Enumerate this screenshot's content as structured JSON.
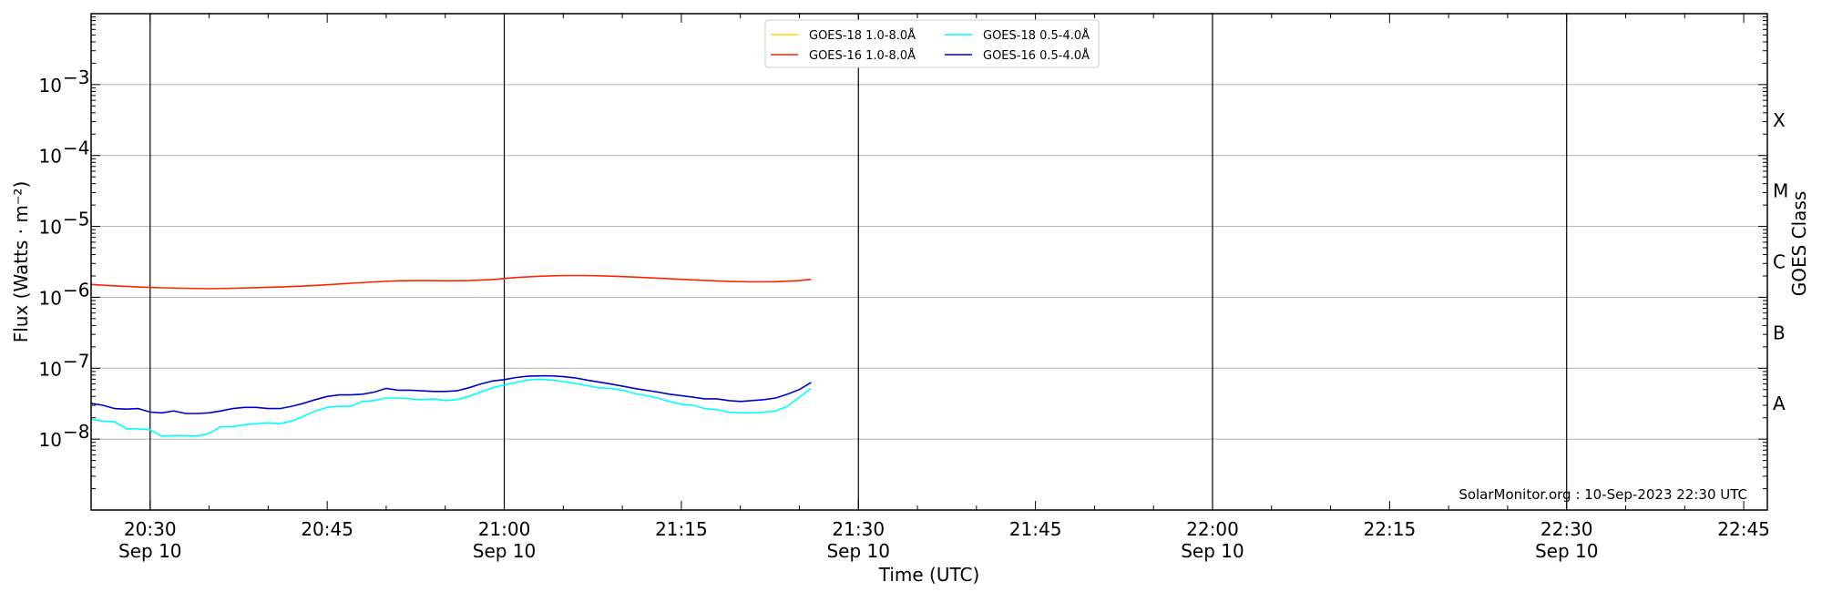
{
  "chart_data": {
    "type": "line",
    "title": "",
    "xlabel": "Time (UTC)",
    "ylabel": "Flux (Watts · m⁻²)",
    "y2label": "GOES Class",
    "y_scale": "log",
    "ylim": [
      1e-09,
      0.01
    ],
    "xlim": [
      "2023-09-10 20:25",
      "2023-09-10 22:47"
    ],
    "grid": "horizontal",
    "legend_position": "top-center",
    "x_ticks": [
      {
        "t": "2023-09-10 20:30",
        "label": "20:30",
        "sub": "Sep 10"
      },
      {
        "t": "2023-09-10 20:45",
        "label": "20:45",
        "sub": ""
      },
      {
        "t": "2023-09-10 21:00",
        "label": "21:00",
        "sub": "Sep 10"
      },
      {
        "t": "2023-09-10 21:15",
        "label": "21:15",
        "sub": ""
      },
      {
        "t": "2023-09-10 21:30",
        "label": "21:30",
        "sub": "Sep 10"
      },
      {
        "t": "2023-09-10 21:45",
        "label": "21:45",
        "sub": ""
      },
      {
        "t": "2023-09-10 22:00",
        "label": "22:00",
        "sub": "Sep 10"
      },
      {
        "t": "2023-09-10 22:15",
        "label": "22:15",
        "sub": ""
      },
      {
        "t": "2023-09-10 22:30",
        "label": "22:30",
        "sub": "Sep 10"
      },
      {
        "t": "2023-09-10 22:45",
        "label": "22:45",
        "sub": ""
      }
    ],
    "day_lines": [
      "2023-09-10 20:30",
      "2023-09-10 21:00",
      "2023-09-10 21:30",
      "2023-09-10 22:00",
      "2023-09-10 22:30"
    ],
    "y_ticks": [
      {
        "exp": -8,
        "label": "10",
        "sup": "−8"
      },
      {
        "exp": -7,
        "label": "10",
        "sup": "−7"
      },
      {
        "exp": -6,
        "label": "10",
        "sup": "−6"
      },
      {
        "exp": -5,
        "label": "10",
        "sup": "−5"
      },
      {
        "exp": -4,
        "label": "10",
        "sup": "−4"
      },
      {
        "exp": -3,
        "label": "10",
        "sup": "−3"
      }
    ],
    "goes_classes": [
      {
        "label": "A",
        "exp": -7.5
      },
      {
        "label": "B",
        "exp": -6.5
      },
      {
        "label": "C",
        "exp": -5.5
      },
      {
        "label": "M",
        "exp": -4.5
      },
      {
        "label": "X",
        "exp": -3.5
      }
    ],
    "annotation": "SolarMonitor.org : 10-Sep-2023 22:30 UTC",
    "series": [
      {
        "name": "GOES-18 1.0-8.0Å",
        "color": "#ffd700",
        "x": [],
        "y": []
      },
      {
        "name": "GOES-16 1.0-8.0Å",
        "color": "#ff2200",
        "x": [
          "2023-09-10 20:25",
          "2023-09-10 20:27",
          "2023-09-10 20:29",
          "2023-09-10 20:31",
          "2023-09-10 20:33",
          "2023-09-10 20:35",
          "2023-09-10 20:37",
          "2023-09-10 20:39",
          "2023-09-10 20:41",
          "2023-09-10 20:43",
          "2023-09-10 20:45",
          "2023-09-10 20:47",
          "2023-09-10 20:49",
          "2023-09-10 20:51",
          "2023-09-10 20:53",
          "2023-09-10 20:55",
          "2023-09-10 20:57",
          "2023-09-10 20:59",
          "2023-09-10 21:01",
          "2023-09-10 21:03",
          "2023-09-10 21:05",
          "2023-09-10 21:07",
          "2023-09-10 21:09",
          "2023-09-10 21:11",
          "2023-09-10 21:13",
          "2023-09-10 21:15",
          "2023-09-10 21:17",
          "2023-09-10 21:19",
          "2023-09-10 21:21",
          "2023-09-10 21:23",
          "2023-09-10 21:25",
          "2023-09-10 21:26"
        ],
        "y": [
          1.52e-06,
          1.45e-06,
          1.4e-06,
          1.36e-06,
          1.34e-06,
          1.32e-06,
          1.34e-06,
          1.37e-06,
          1.4e-06,
          1.44e-06,
          1.5e-06,
          1.58e-06,
          1.65e-06,
          1.71e-06,
          1.72e-06,
          1.71e-06,
          1.72e-06,
          1.78e-06,
          1.9e-06,
          1.98e-06,
          2.03e-06,
          2.03e-06,
          1.99e-06,
          1.93e-06,
          1.86e-06,
          1.79e-06,
          1.73e-06,
          1.68e-06,
          1.65e-06,
          1.66e-06,
          1.72e-06,
          1.8e-06
        ]
      },
      {
        "name": "GOES-18 0.5-4.0Å",
        "color": "#00ffff",
        "x": [
          "2023-09-10 20:25",
          "2023-09-10 20:26",
          "2023-09-10 20:27",
          "2023-09-10 20:28",
          "2023-09-10 20:29",
          "2023-09-10 20:30",
          "2023-09-10 20:31",
          "2023-09-10 20:32",
          "2023-09-10 20:33",
          "2023-09-10 20:34",
          "2023-09-10 20:35",
          "2023-09-10 20:36",
          "2023-09-10 20:37",
          "2023-09-10 20:38",
          "2023-09-10 20:39",
          "2023-09-10 20:40",
          "2023-09-10 20:41",
          "2023-09-10 20:42",
          "2023-09-10 20:43",
          "2023-09-10 20:44",
          "2023-09-10 20:45",
          "2023-09-10 20:46",
          "2023-09-10 20:47",
          "2023-09-10 20:48",
          "2023-09-10 20:49",
          "2023-09-10 20:50",
          "2023-09-10 20:51",
          "2023-09-10 20:52",
          "2023-09-10 20:53",
          "2023-09-10 20:54",
          "2023-09-10 20:55",
          "2023-09-10 20:56",
          "2023-09-10 20:57",
          "2023-09-10 20:58",
          "2023-09-10 20:59",
          "2023-09-10 21:00",
          "2023-09-10 21:01",
          "2023-09-10 21:02",
          "2023-09-10 21:03",
          "2023-09-10 21:04",
          "2023-09-10 21:05",
          "2023-09-10 21:06",
          "2023-09-10 21:07",
          "2023-09-10 21:08",
          "2023-09-10 21:09",
          "2023-09-10 21:10",
          "2023-09-10 21:11",
          "2023-09-10 21:12",
          "2023-09-10 21:13",
          "2023-09-10 21:14",
          "2023-09-10 21:15",
          "2023-09-10 21:16",
          "2023-09-10 21:17",
          "2023-09-10 21:18",
          "2023-09-10 21:19",
          "2023-09-10 21:20",
          "2023-09-10 21:21",
          "2023-09-10 21:22",
          "2023-09-10 21:23",
          "2023-09-10 21:24",
          "2023-09-10 21:25",
          "2023-09-10 21:26"
        ],
        "y": [
          1.9e-08,
          1.8e-08,
          1.75e-08,
          1.4e-08,
          1.4e-08,
          1.35e-08,
          1.1e-08,
          1.12e-08,
          1.12e-08,
          1.1e-08,
          1.2e-08,
          1.5e-08,
          1.5e-08,
          1.6e-08,
          1.65e-08,
          1.7e-08,
          1.65e-08,
          1.8e-08,
          2.1e-08,
          2.5e-08,
          2.8e-08,
          2.9e-08,
          2.9e-08,
          3.4e-08,
          3.5e-08,
          3.8e-08,
          3.8e-08,
          3.7e-08,
          3.6e-08,
          3.7e-08,
          3.5e-08,
          3.6e-08,
          4e-08,
          4.6e-08,
          5.3e-08,
          5.8e-08,
          6.3e-08,
          6.8e-08,
          7e-08,
          6.8e-08,
          6.5e-08,
          6.1e-08,
          5.7e-08,
          5.3e-08,
          5.2e-08,
          4.9e-08,
          4.4e-08,
          4.1e-08,
          3.8e-08,
          3.4e-08,
          3.1e-08,
          3e-08,
          2.7e-08,
          2.6e-08,
          2.4e-08,
          2.35e-08,
          2.35e-08,
          2.4e-08,
          2.5e-08,
          2.9e-08,
          3.9e-08,
          5.2e-08
        ]
      },
      {
        "name": "GOES-16 0.5-4.0Å",
        "color": "#0000cc",
        "x": [
          "2023-09-10 20:25",
          "2023-09-10 20:26",
          "2023-09-10 20:27",
          "2023-09-10 20:28",
          "2023-09-10 20:29",
          "2023-09-10 20:30",
          "2023-09-10 20:31",
          "2023-09-10 20:32",
          "2023-09-10 20:33",
          "2023-09-10 20:34",
          "2023-09-10 20:35",
          "2023-09-10 20:36",
          "2023-09-10 20:37",
          "2023-09-10 20:38",
          "2023-09-10 20:39",
          "2023-09-10 20:40",
          "2023-09-10 20:41",
          "2023-09-10 20:42",
          "2023-09-10 20:43",
          "2023-09-10 20:44",
          "2023-09-10 20:45",
          "2023-09-10 20:46",
          "2023-09-10 20:47",
          "2023-09-10 20:48",
          "2023-09-10 20:49",
          "2023-09-10 20:50",
          "2023-09-10 20:51",
          "2023-09-10 20:52",
          "2023-09-10 20:53",
          "2023-09-10 20:54",
          "2023-09-10 20:55",
          "2023-09-10 20:56",
          "2023-09-10 20:57",
          "2023-09-10 20:58",
          "2023-09-10 20:59",
          "2023-09-10 21:00",
          "2023-09-10 21:01",
          "2023-09-10 21:02",
          "2023-09-10 21:03",
          "2023-09-10 21:04",
          "2023-09-10 21:05",
          "2023-09-10 21:06",
          "2023-09-10 21:07",
          "2023-09-10 21:08",
          "2023-09-10 21:09",
          "2023-09-10 21:10",
          "2023-09-10 21:11",
          "2023-09-10 21:12",
          "2023-09-10 21:13",
          "2023-09-10 21:14",
          "2023-09-10 21:15",
          "2023-09-10 21:16",
          "2023-09-10 21:17",
          "2023-09-10 21:18",
          "2023-09-10 21:19",
          "2023-09-10 21:20",
          "2023-09-10 21:21",
          "2023-09-10 21:22",
          "2023-09-10 21:23",
          "2023-09-10 21:24",
          "2023-09-10 21:25",
          "2023-09-10 21:26"
        ],
        "y": [
          3.2e-08,
          3e-08,
          2.7e-08,
          2.65e-08,
          2.7e-08,
          2.4e-08,
          2.35e-08,
          2.5e-08,
          2.3e-08,
          2.3e-08,
          2.35e-08,
          2.5e-08,
          2.7e-08,
          2.8e-08,
          2.8e-08,
          2.7e-08,
          2.7e-08,
          2.9e-08,
          3.2e-08,
          3.6e-08,
          4e-08,
          4.2e-08,
          4.2e-08,
          4.3e-08,
          4.6e-08,
          5.2e-08,
          4.9e-08,
          4.9e-08,
          4.8e-08,
          4.7e-08,
          4.7e-08,
          4.8e-08,
          5.3e-08,
          6e-08,
          6.6e-08,
          6.9e-08,
          7.4e-08,
          7.7e-08,
          7.8e-08,
          7.8e-08,
          7.6e-08,
          7.3e-08,
          6.8e-08,
          6.4e-08,
          6e-08,
          5.6e-08,
          5.2e-08,
          4.9e-08,
          4.6e-08,
          4.3e-08,
          4.1e-08,
          3.9e-08,
          3.7e-08,
          3.7e-08,
          3.5e-08,
          3.4e-08,
          3.5e-08,
          3.6e-08,
          3.8e-08,
          4.3e-08,
          5e-08,
          6.3e-08
        ]
      }
    ]
  }
}
